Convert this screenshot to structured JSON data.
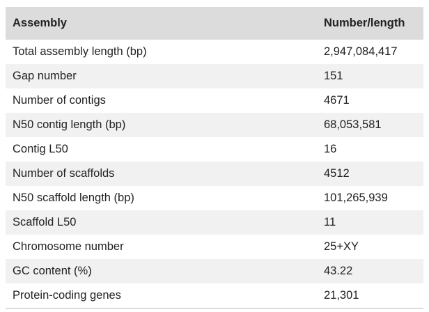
{
  "table": {
    "header": [
      "Assembly",
      "Number/length"
    ],
    "rows": [
      [
        "Total assembly length (bp)",
        "2,947,084,417"
      ],
      [
        "Gap number",
        "151"
      ],
      [
        "Number of contigs",
        "4671"
      ],
      [
        "N50 contig length (bp)",
        "68,053,581"
      ],
      [
        "Contig L50",
        "16"
      ],
      [
        "Number of scaffolds",
        "4512"
      ],
      [
        "N50 scaffold length (bp)",
        "101,265,939"
      ],
      [
        "Scaffold L50",
        "11"
      ],
      [
        "Chromosome number",
        "25+XY"
      ],
      [
        "GC content (%)",
        "43.22"
      ],
      [
        "Protein-coding genes",
        "21,301"
      ]
    ]
  }
}
